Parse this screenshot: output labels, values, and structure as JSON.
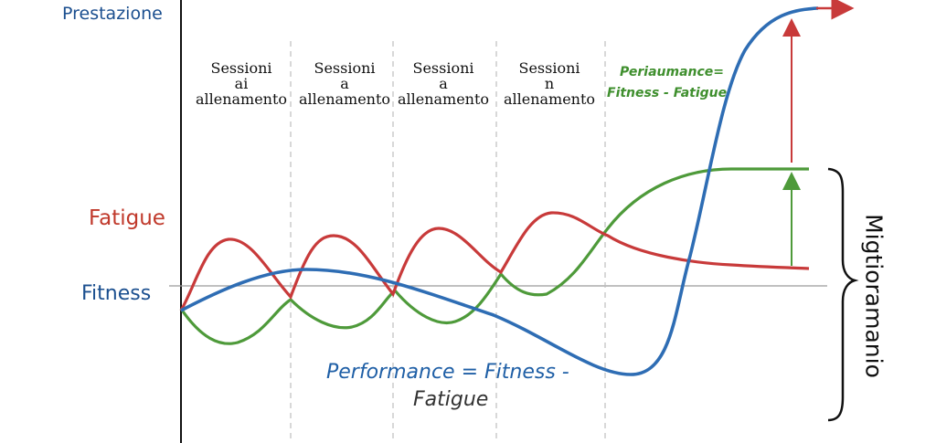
{
  "labels": {
    "y_axis_title": "Prestazione",
    "fatigue": "Fatigue",
    "fitness": "Fitness",
    "improvement": "Migtioramanio"
  },
  "sessions": [
    {
      "line1": "Sessioni",
      "line2": "ai",
      "line3": "allenamento"
    },
    {
      "line1": "Sessioni",
      "line2": "a",
      "line3": "allenamento"
    },
    {
      "line1": "Sessioni",
      "line2": "a",
      "line3": "allenamento"
    },
    {
      "line1": "Sessioni",
      "line2": "n",
      "line3": "allenamento"
    }
  ],
  "equations": {
    "green_line1": "Periаumance=",
    "green_line2": "Fitness - Fatigue",
    "blue_line1": "Performance = Fitness -",
    "blue_line2": "Fatigue"
  },
  "colors": {
    "fitness": "#2e6db4",
    "fatigue": "#c83a3a",
    "performance": "#4e9a3a",
    "axis": "#111111",
    "divider": "#bbbbbb"
  }
}
